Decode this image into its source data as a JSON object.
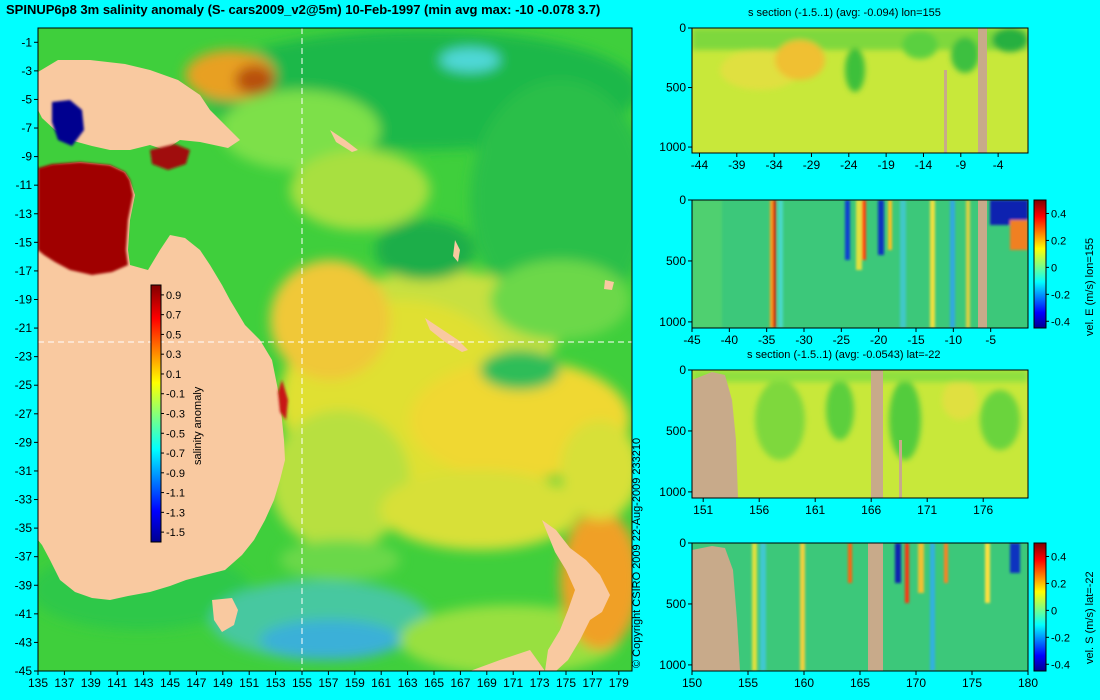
{
  "title": "SPINUP6p8 3m salinity anomaly (S- cars2009_v2@5m) 10-Feb-1997 (min avg max: -10 -0.078 3.7)",
  "copyright": "© Copyright CSIRO 2009   22-Aug-2009 233210",
  "colors": {
    "background": "#00ffff",
    "land": "#f9c9a0",
    "seafloor": "#c8aa8a",
    "crosshair": "#ffffff"
  },
  "chart_data": [
    {
      "type": "heatmap",
      "id": "map",
      "x_ticks": [
        "135",
        "137",
        "139",
        "141",
        "143",
        "145",
        "147",
        "149",
        "151",
        "153",
        "155",
        "157",
        "159",
        "161",
        "163",
        "165",
        "167",
        "169",
        "171",
        "173",
        "175",
        "177",
        "179"
      ],
      "y_ticks": [
        "-1",
        "-3",
        "-5",
        "-7",
        "-9",
        "-11",
        "-13",
        "-15",
        "-17",
        "-19",
        "-21",
        "-23",
        "-25",
        "-27",
        "-29",
        "-31",
        "-33",
        "-35",
        "-37",
        "-39",
        "-41",
        "-43",
        "-45"
      ],
      "xlim": [
        135,
        180
      ],
      "ylim": [
        -45,
        0
      ],
      "crosshair": {
        "lon": 155,
        "lat": -22
      },
      "colorbar": {
        "label": "salinity anomaly",
        "ticks": [
          "0.9",
          "0.7",
          "0.5",
          "0.3",
          "0.1",
          "-0.1",
          "-0.3",
          "-0.5",
          "-0.7",
          "-0.9",
          "-1.1",
          "-1.3",
          "-1.5"
        ],
        "range": [
          -1.6,
          1.0
        ]
      }
    },
    {
      "type": "heatmap",
      "id": "section1",
      "title": "s section (-1.5..1) (avg: -0.094) lon=155",
      "x_ticks": [
        "-44",
        "-39",
        "-34",
        "-29",
        "-24",
        "-19",
        "-14",
        "-9",
        "-4"
      ],
      "xlim": [
        -45,
        0
      ],
      "y_ticks": [
        "0",
        "500",
        "1000"
      ],
      "ylim": [
        0,
        1050
      ]
    },
    {
      "type": "heatmap",
      "id": "section2",
      "x_ticks": [
        "-45",
        "-40",
        "-35",
        "-30",
        "-25",
        "-20",
        "-15",
        "-10",
        "-5"
      ],
      "xlim": [
        -45,
        0
      ],
      "y_ticks": [
        "0",
        "500",
        "1000"
      ],
      "ylim": [
        0,
        1050
      ],
      "colorbar": {
        "label": "vel. E (m/s) lon=155",
        "ticks": [
          "0.4",
          "0.2",
          "0",
          "-0.2",
          "-0.4"
        ],
        "range": [
          -0.45,
          0.5
        ]
      }
    },
    {
      "type": "heatmap",
      "id": "section3",
      "title": "s section (-1.5..1) (avg: -0.0543) lat=-22",
      "x_ticks": [
        "151",
        "156",
        "161",
        "166",
        "171",
        "176"
      ],
      "xlim": [
        150,
        180
      ],
      "y_ticks": [
        "0",
        "500",
        "1000"
      ],
      "ylim": [
        0,
        1050
      ]
    },
    {
      "type": "heatmap",
      "id": "section4",
      "x_ticks": [
        "150",
        "155",
        "160",
        "165",
        "170",
        "175",
        "180"
      ],
      "xlim": [
        150,
        180
      ],
      "y_ticks": [
        "0",
        "500",
        "1000"
      ],
      "ylim": [
        0,
        1050
      ],
      "colorbar": {
        "label": "vel. S (m/s) lat=-22",
        "ticks": [
          "0.4",
          "0.2",
          "0",
          "-0.2",
          "-0.4"
        ],
        "range": [
          -0.45,
          0.5
        ]
      }
    }
  ]
}
